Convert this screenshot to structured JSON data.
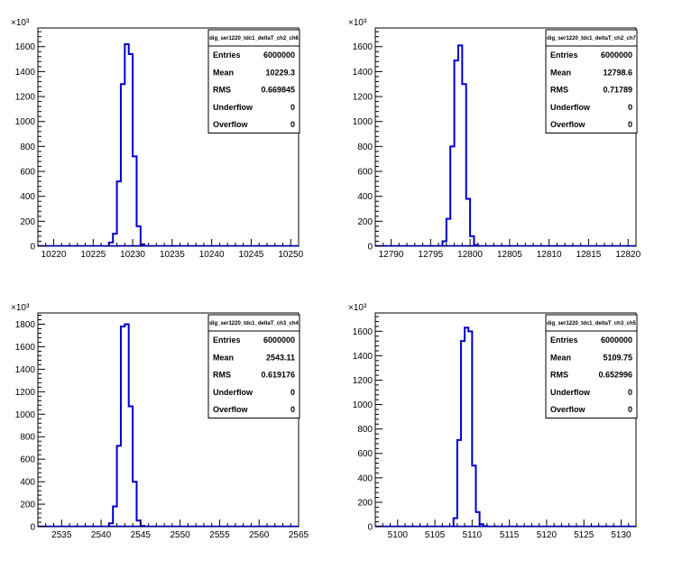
{
  "chart_data": [
    {
      "type": "histogram",
      "stats_title": "dig_ser1220_tdc1_deltaT_ch2_ch6",
      "stats": [
        {
          "label": "Entries",
          "value": "6000000"
        },
        {
          "label": "Mean",
          "value": "10229.3"
        },
        {
          "label": "RMS",
          "value": "0.669845"
        },
        {
          "label": "Underflow",
          "value": "0"
        },
        {
          "label": "Overflow",
          "value": "0"
        }
      ],
      "y_exponent": "×10³",
      "xlim": [
        10218,
        10251
      ],
      "ylim": [
        0,
        1750
      ],
      "x_ticks": [
        10220,
        10225,
        10230,
        10235,
        10240,
        10245,
        10250
      ],
      "x_tick_labels": [
        "10220",
        "10225",
        "10230",
        "10235",
        "10240",
        "10245",
        "10250"
      ],
      "y_ticks": [
        0,
        200,
        400,
        600,
        800,
        1000,
        1200,
        1400,
        1600
      ],
      "y_tick_labels": [
        "0",
        "200",
        "400",
        "600",
        "800",
        "1000",
        "1200",
        "1400",
        "1600"
      ],
      "bins": {
        "edges": [
          10227,
          10227.5,
          10228,
          10228.5,
          10229,
          10229.5,
          10230,
          10230.5,
          10231,
          10231.5
        ],
        "values": [
          30,
          100,
          520,
          1300,
          1620,
          1540,
          720,
          160,
          15
        ]
      },
      "color": "#0000cc"
    },
    {
      "type": "histogram",
      "stats_title": "dig_ser1220_tdc1_deltaT_ch2_ch7",
      "stats": [
        {
          "label": "Entries",
          "value": "6000000"
        },
        {
          "label": "Mean",
          "value": "12798.6"
        },
        {
          "label": "RMS",
          "value": "0.71789"
        },
        {
          "label": "Underflow",
          "value": "0"
        },
        {
          "label": "Overflow",
          "value": "0"
        }
      ],
      "y_exponent": "×10³",
      "xlim": [
        12788,
        12821
      ],
      "ylim": [
        0,
        1750
      ],
      "x_ticks": [
        12790,
        12795,
        12800,
        12805,
        12810,
        12815,
        12820
      ],
      "x_tick_labels": [
        "12790",
        "12795",
        "12800",
        "12805",
        "12810",
        "12815",
        "12820"
      ],
      "y_ticks": [
        0,
        200,
        400,
        600,
        800,
        1000,
        1200,
        1400,
        1600
      ],
      "y_tick_labels": [
        "0",
        "200",
        "400",
        "600",
        "800",
        "1000",
        "1200",
        "1400",
        "1600"
      ],
      "bins": {
        "edges": [
          12796.5,
          12797,
          12797.5,
          12798,
          12798.5,
          12799,
          12799.5,
          12800,
          12800.5,
          12801
        ],
        "values": [
          40,
          220,
          800,
          1490,
          1610,
          1300,
          380,
          80,
          10
        ]
      },
      "color": "#0000cc"
    },
    {
      "type": "histogram",
      "stats_title": "dig_ser1220_tdc1_deltaT_ch3_ch4",
      "stats": [
        {
          "label": "Entries",
          "value": "6000000"
        },
        {
          "label": "Mean",
          "value": "2543.11"
        },
        {
          "label": "RMS",
          "value": "0.619176"
        },
        {
          "label": "Underflow",
          "value": "0"
        },
        {
          "label": "Overflow",
          "value": "0"
        }
      ],
      "y_exponent": "×10³",
      "xlim": [
        2532,
        2565
      ],
      "ylim": [
        0,
        1900
      ],
      "x_ticks": [
        2535,
        2540,
        2545,
        2550,
        2555,
        2560,
        2565
      ],
      "x_tick_labels": [
        "2535",
        "2540",
        "2545",
        "2550",
        "2555",
        "2560",
        "2565"
      ],
      "y_ticks": [
        0,
        200,
        400,
        600,
        800,
        1000,
        1200,
        1400,
        1600,
        1800
      ],
      "y_tick_labels": [
        "0",
        "200",
        "400",
        "600",
        "800",
        "1000",
        "1200",
        "1400",
        "1600",
        "1800"
      ],
      "bins": {
        "edges": [
          2541,
          2541.5,
          2542,
          2542.5,
          2543,
          2543.5,
          2544,
          2544.5,
          2545,
          2545.5
        ],
        "values": [
          30,
          180,
          720,
          1780,
          1800,
          1070,
          400,
          55,
          8
        ]
      },
      "color": "#0000cc"
    },
    {
      "type": "histogram",
      "stats_title": "dig_ser1220_tdc1_deltaT_ch3_ch5",
      "stats": [
        {
          "label": "Entries",
          "value": "6000000"
        },
        {
          "label": "Mean",
          "value": "5109.75"
        },
        {
          "label": "RMS",
          "value": "0.652996"
        },
        {
          "label": "Underflow",
          "value": "0"
        },
        {
          "label": "Overflow",
          "value": "0"
        }
      ],
      "y_exponent": "×10³",
      "xlim": [
        5097,
        5132
      ],
      "ylim": [
        0,
        1750
      ],
      "x_ticks": [
        5100,
        5105,
        5110,
        5115,
        5120,
        5125,
        5130
      ],
      "x_tick_labels": [
        "5100",
        "5105",
        "5110",
        "5115",
        "5120",
        "5125",
        "5130"
      ],
      "y_ticks": [
        0,
        200,
        400,
        600,
        800,
        1000,
        1200,
        1400,
        1600
      ],
      "y_tick_labels": [
        "0",
        "200",
        "400",
        "600",
        "800",
        "1000",
        "1200",
        "1400",
        "1600"
      ],
      "bins": {
        "edges": [
          5107.5,
          5108,
          5108.5,
          5109,
          5109.5,
          5110,
          5110.5,
          5111,
          5111.5,
          5112
        ],
        "values": [
          70,
          710,
          1520,
          1630,
          1600,
          500,
          120,
          20,
          5
        ]
      },
      "color": "#0000cc"
    }
  ]
}
